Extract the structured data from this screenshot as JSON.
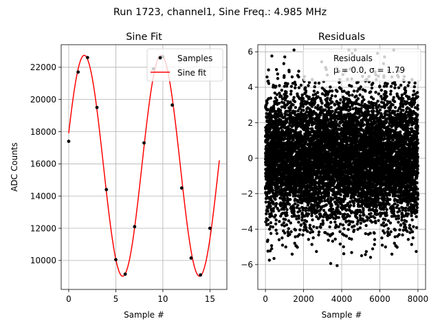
{
  "figure": {
    "suptitle": "Run 1723, channel1, Sine Freq.: 4.985 MHz"
  },
  "chart_data": [
    {
      "type": "scatter",
      "title": "Sine Fit",
      "xlabel": "Sample #",
      "ylabel": "ADC Counts",
      "xlim": [
        -0.8,
        16.8
      ],
      "ylim": [
        8200,
        23400
      ],
      "xticks": [
        0,
        5,
        10,
        15
      ],
      "yticks": [
        10000,
        12000,
        14000,
        16000,
        18000,
        20000,
        22000
      ],
      "grid": true,
      "legend": {
        "placement": "upper right",
        "entries": [
          "Samples",
          "Sine fit"
        ]
      },
      "series": [
        {
          "name": "Samples",
          "kind": "scatter",
          "color": "#000000",
          "x": [
            0,
            1,
            2,
            3,
            4,
            5,
            6,
            7,
            8,
            9,
            10,
            11,
            12,
            13,
            14,
            15
          ],
          "y": [
            17400,
            21700,
            22600,
            19500,
            14400,
            10050,
            9150,
            12100,
            17300,
            21900,
            22650,
            19650,
            14500,
            10150,
            9100,
            12000
          ]
        },
        {
          "name": "Sine fit",
          "kind": "line",
          "color": "#ff0000",
          "function": {
            "offset": 15880,
            "amplitude": 6860,
            "frequency_cycles_per_sample": 0.1225,
            "phase": 0.3,
            "x_start": 0,
            "x_end": 16
          }
        }
      ]
    },
    {
      "type": "scatter",
      "title": "Residuals",
      "xlabel": "Sample #",
      "ylabel": "",
      "xlim": [
        -400,
        8400
      ],
      "ylim": [
        -7.4,
        6.4
      ],
      "xticks": [
        0,
        2000,
        4000,
        6000,
        8000
      ],
      "yticks": [
        -6,
        -4,
        -2,
        0,
        2,
        4,
        6
      ],
      "grid": true,
      "legend": {
        "placement": "upper right",
        "entries": [
          "Residuals",
          "μ = 0.0, σ = 1.79"
        ]
      },
      "series": [
        {
          "name": "Residuals",
          "kind": "scatter",
          "color": "#000000",
          "n_points": 8000,
          "distribution": {
            "type": "normal",
            "mean": 0.0,
            "std": 1.79
          }
        }
      ],
      "stats": {
        "mean": 0.0,
        "std": 1.79
      }
    }
  ]
}
